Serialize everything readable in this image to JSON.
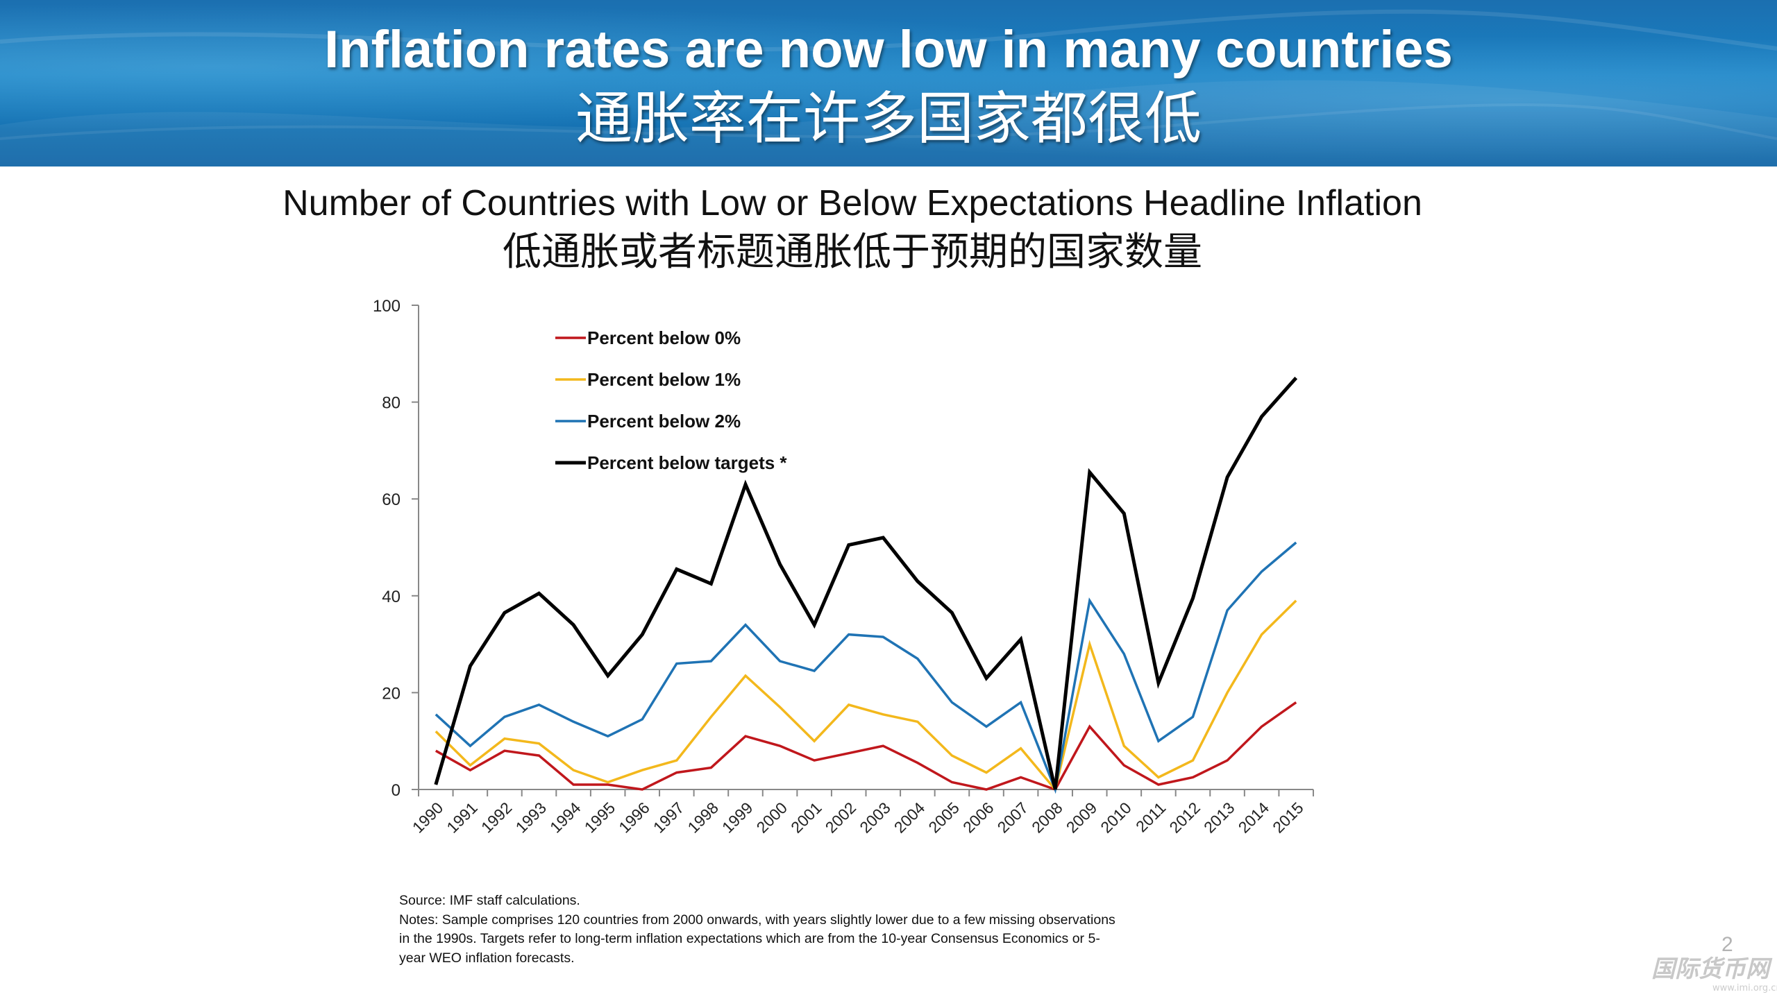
{
  "banner": {
    "title_en": "Inflation rates are now low in many countries",
    "title_zh": "通胀率在许多国家都很低"
  },
  "chart_data": {
    "type": "line",
    "title": "Number of Countries with Low or Below Expectations Headline Inflation",
    "subtitle": "低通胀或者标题通胀低于预期的国家数量",
    "xlabel": "",
    "ylabel": "",
    "categories": [
      "1990",
      "1991",
      "1992",
      "1993",
      "1994",
      "1995",
      "1996",
      "1997",
      "1998",
      "1999",
      "2000",
      "2001",
      "2002",
      "2003",
      "2004",
      "2005",
      "2006",
      "2007",
      "2008",
      "2009",
      "2010",
      "2011",
      "2012",
      "2013",
      "2014",
      "2015"
    ],
    "ylim": [
      0,
      100
    ],
    "yticks": [
      0,
      20,
      40,
      60,
      80,
      100
    ],
    "grid": false,
    "legend_position": "top-left",
    "series": [
      {
        "name": "Percent below 0%",
        "color": "#c0171c",
        "values": [
          8,
          4,
          8,
          7,
          1,
          1,
          0,
          3.5,
          4.5,
          11,
          9,
          6,
          7.5,
          9,
          5.5,
          1.5,
          0,
          2.5,
          0,
          13,
          5,
          1,
          2.5,
          6,
          13,
          18
        ]
      },
      {
        "name": "Percent below 1%",
        "color": "#f3b81c",
        "values": [
          12,
          5,
          10.5,
          9.5,
          4,
          1.5,
          4,
          6,
          15,
          23.5,
          17,
          10,
          17.5,
          15.5,
          14,
          7,
          3.5,
          8.5,
          0,
          30,
          9,
          2.5,
          6,
          20,
          32,
          39
        ]
      },
      {
        "name": "Percent below 2%",
        "color": "#1f73b4",
        "values": [
          15.5,
          9,
          15,
          17.5,
          14,
          11,
          14.5,
          26,
          26.5,
          34,
          26.5,
          24.5,
          32,
          31.5,
          27,
          18,
          13,
          18,
          0,
          39,
          28,
          10,
          15,
          37,
          45,
          51
        ]
      },
      {
        "name": "Percent below targets *",
        "color": "#000000",
        "values": [
          1,
          25.5,
          36.5,
          40.5,
          34,
          23.5,
          32,
          45.5,
          42.5,
          63,
          46.5,
          34,
          50.5,
          52,
          43,
          36.5,
          23,
          31,
          0,
          65.5,
          57,
          22,
          39.5,
          64.5,
          77,
          85
        ]
      }
    ]
  },
  "footnote": {
    "source": "Source: IMF staff calculations.",
    "notes_line1": "Notes: Sample comprises 120 countries from 2000 onwards, with years slightly lower due to a few missing observations",
    "notes_line2": "in the 1990s. Targets refer to long-term inflation expectations which are from the 10-year Consensus Economics or 5-",
    "notes_line3": "year WEO inflation forecasts."
  },
  "page_number": "2",
  "watermark": {
    "text_zh": "国际货币网",
    "url": "www.imi.org.cn"
  }
}
